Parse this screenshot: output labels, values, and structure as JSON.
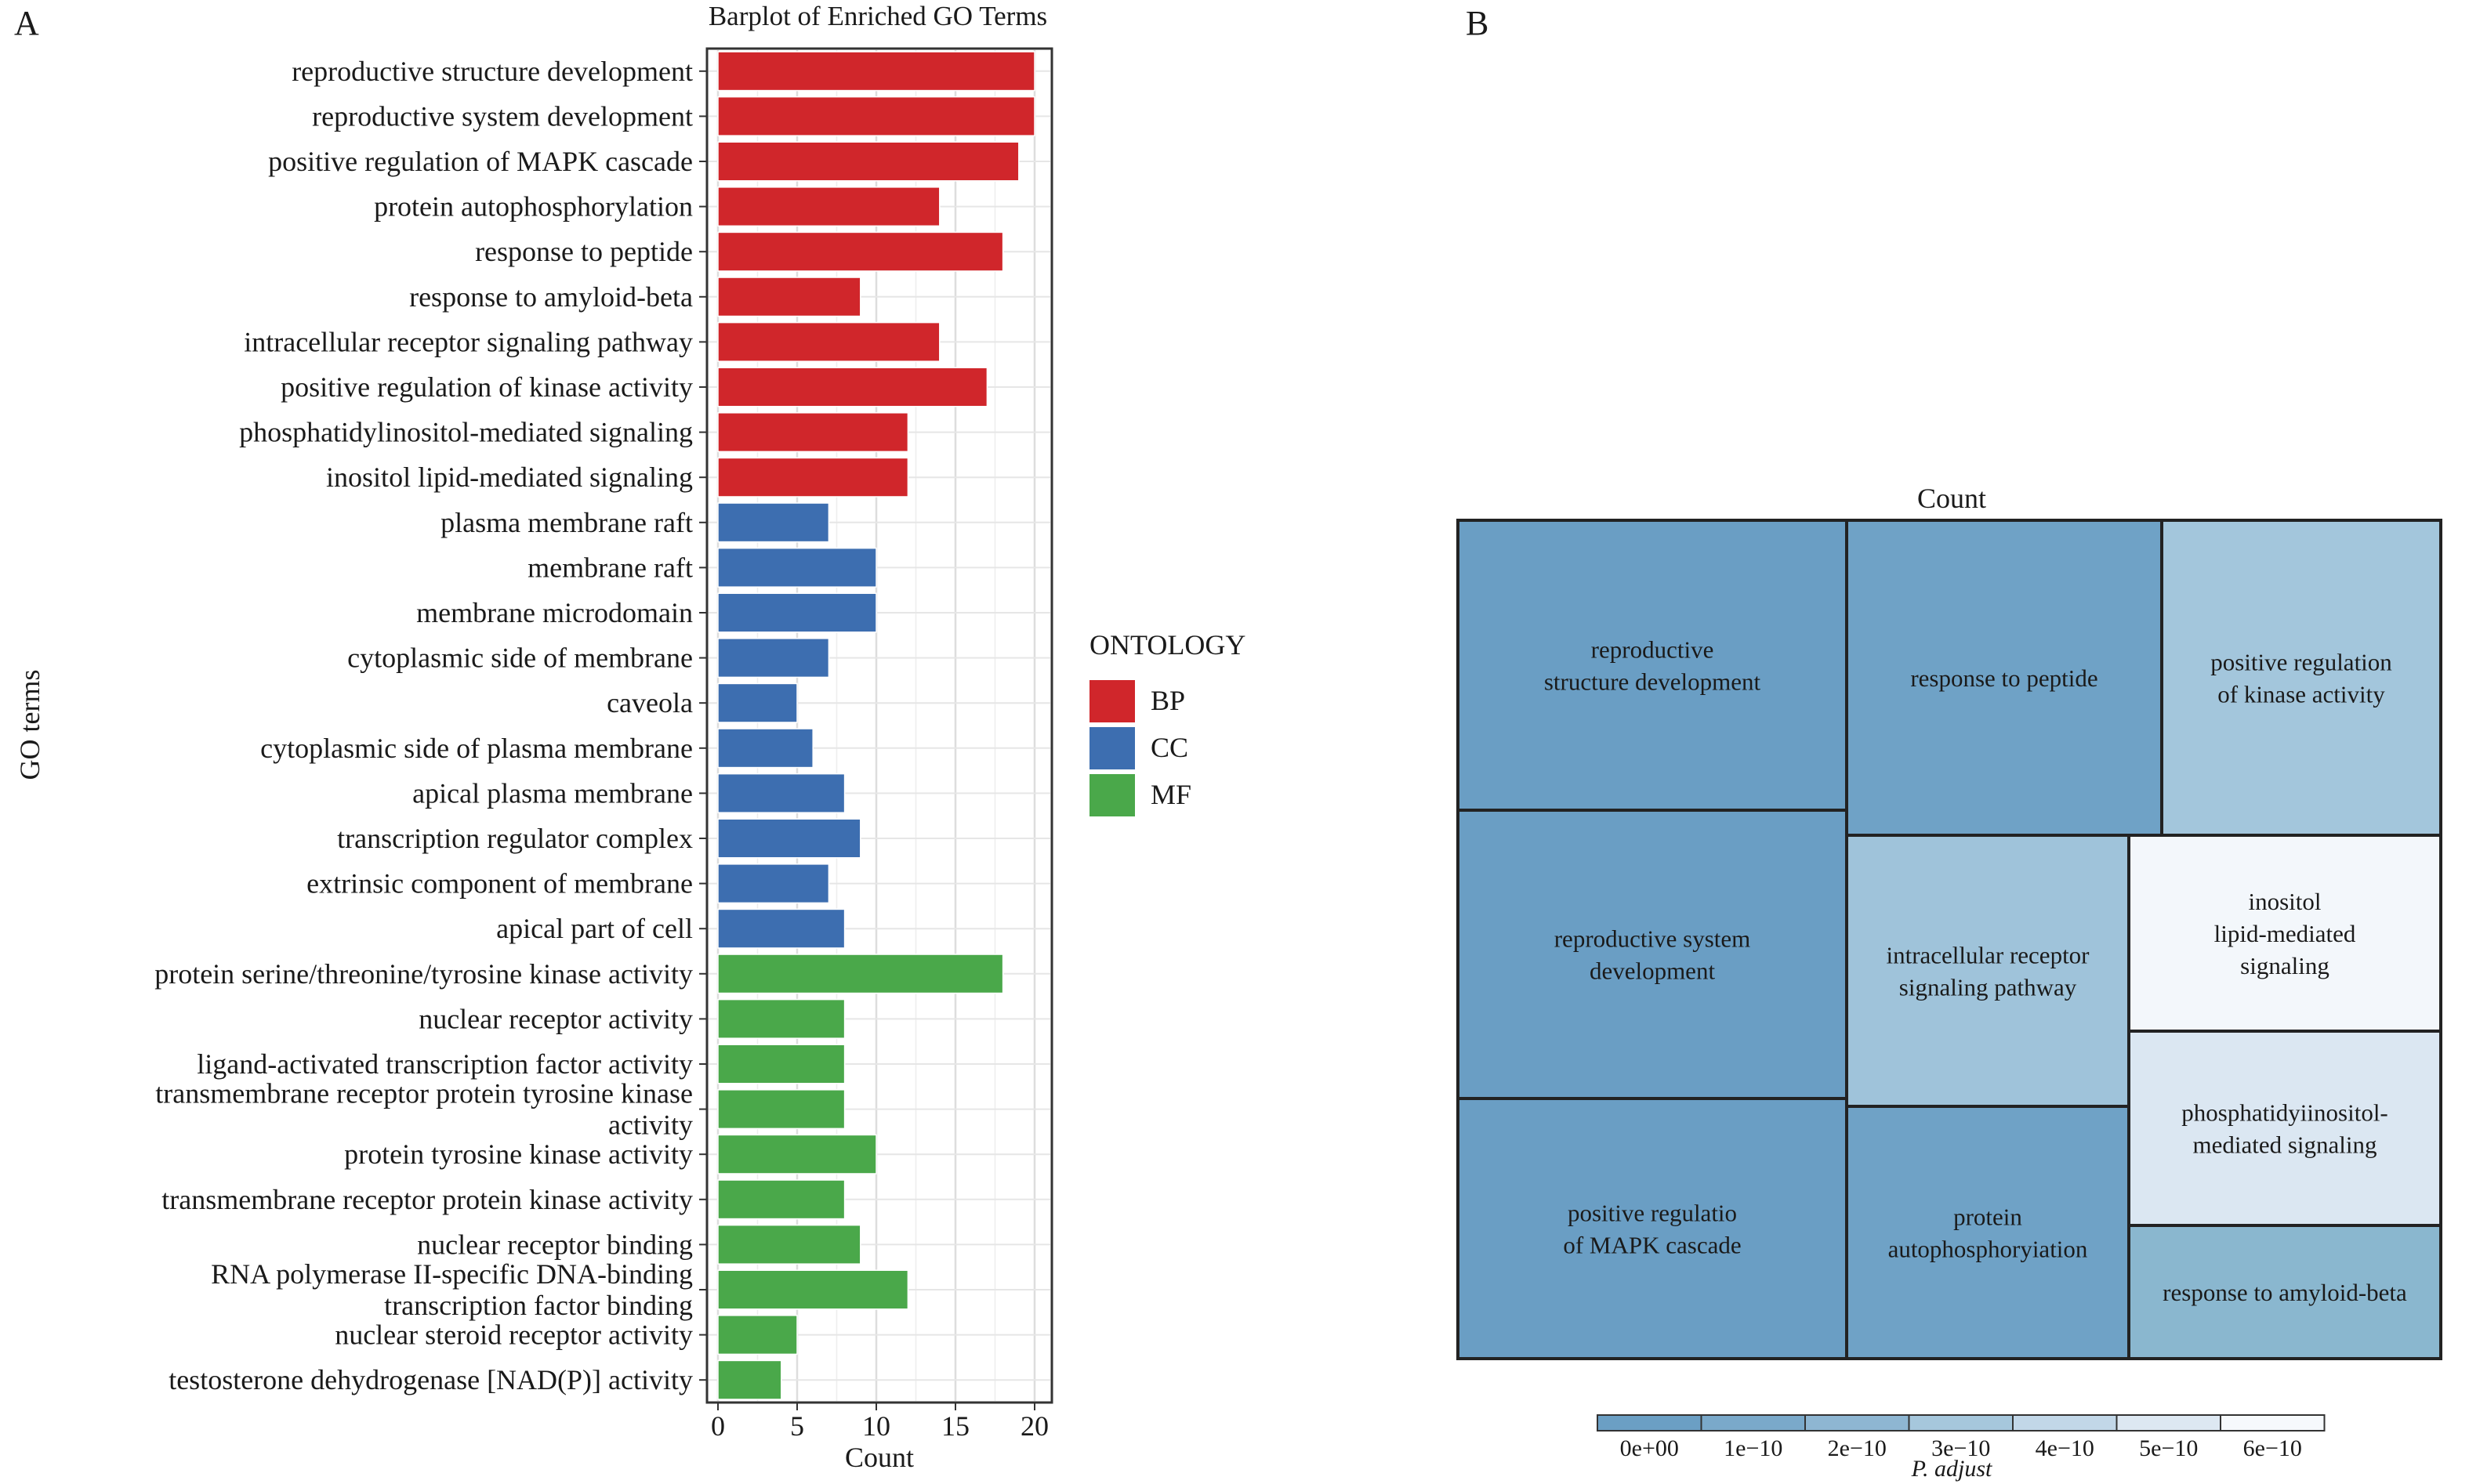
{
  "panels": {
    "A": {
      "label": "A"
    },
    "B": {
      "label": "B"
    }
  },
  "chart_data": [
    {
      "type": "bar",
      "orientation": "horizontal",
      "title": "Barplot of Enriched GO Terms",
      "xlabel": "Count",
      "ylabel": "GO terms",
      "xlim": [
        0,
        21
      ],
      "xticks": [
        0,
        5,
        10,
        15,
        20
      ],
      "grid": true,
      "legend": {
        "title": "ONTOLOGY",
        "placement": "right",
        "entries": [
          {
            "name": "BP",
            "color": "#d0262b"
          },
          {
            "name": "CC",
            "color": "#3d6eb0"
          },
          {
            "name": "MF",
            "color": "#4aa84a"
          }
        ]
      },
      "categories": [
        {
          "lines": [
            "reproductive structure development"
          ],
          "value": 20,
          "group": "BP"
        },
        {
          "lines": [
            "reproductive system development"
          ],
          "value": 20,
          "group": "BP"
        },
        {
          "lines": [
            "positive regulation of MAPK cascade"
          ],
          "value": 19,
          "group": "BP"
        },
        {
          "lines": [
            "protein autophosphorylation"
          ],
          "value": 14,
          "group": "BP"
        },
        {
          "lines": [
            "response to peptide"
          ],
          "value": 18,
          "group": "BP"
        },
        {
          "lines": [
            "response to amyloid-beta"
          ],
          "value": 9,
          "group": "BP"
        },
        {
          "lines": [
            "intracellular receptor signaling pathway"
          ],
          "value": 14,
          "group": "BP"
        },
        {
          "lines": [
            "positive regulation of kinase activity"
          ],
          "value": 17,
          "group": "BP"
        },
        {
          "lines": [
            "phosphatidylinositol-mediated signaling"
          ],
          "value": 12,
          "group": "BP"
        },
        {
          "lines": [
            "inositol lipid-mediated signaling"
          ],
          "value": 12,
          "group": "BP"
        },
        {
          "lines": [
            "plasma membrane raft"
          ],
          "value": 7,
          "group": "CC"
        },
        {
          "lines": [
            "membrane raft"
          ],
          "value": 10,
          "group": "CC"
        },
        {
          "lines": [
            "membrane microdomain"
          ],
          "value": 10,
          "group": "CC"
        },
        {
          "lines": [
            "cytoplasmic side of membrane"
          ],
          "value": 7,
          "group": "CC"
        },
        {
          "lines": [
            "caveola"
          ],
          "value": 5,
          "group": "CC"
        },
        {
          "lines": [
            "cytoplasmic side of plasma membrane"
          ],
          "value": 6,
          "group": "CC"
        },
        {
          "lines": [
            "apical plasma membrane"
          ],
          "value": 8,
          "group": "CC"
        },
        {
          "lines": [
            "transcription regulator complex"
          ],
          "value": 9,
          "group": "CC"
        },
        {
          "lines": [
            "extrinsic component of membrane"
          ],
          "value": 7,
          "group": "CC"
        },
        {
          "lines": [
            "apical part of cell"
          ],
          "value": 8,
          "group": "CC"
        },
        {
          "lines": [
            "protein serine/threonine/tyrosine kinase activity"
          ],
          "value": 18,
          "group": "MF"
        },
        {
          "lines": [
            "nuclear receptor activity"
          ],
          "value": 8,
          "group": "MF"
        },
        {
          "lines": [
            "ligand-activated transcription factor activity"
          ],
          "value": 8,
          "group": "MF"
        },
        {
          "lines": [
            "transmembrane receptor protein tyrosine kinase",
            "activity"
          ],
          "value": 8,
          "group": "MF"
        },
        {
          "lines": [
            "protein tyrosine kinase activity"
          ],
          "value": 10,
          "group": "MF"
        },
        {
          "lines": [
            "transmembrane receptor protein kinase activity"
          ],
          "value": 8,
          "group": "MF"
        },
        {
          "lines": [
            "nuclear receptor binding"
          ],
          "value": 9,
          "group": "MF"
        },
        {
          "lines": [
            "RNA polymerase II-specific DNA-binding",
            "transcription factor binding"
          ],
          "value": 12,
          "group": "MF"
        },
        {
          "lines": [
            "nuclear steroid receptor activity"
          ],
          "value": 5,
          "group": "MF"
        },
        {
          "lines": [
            "testosterone dehydrogenase [NAD(P)] activity"
          ],
          "value": 4,
          "group": "MF"
        }
      ]
    },
    {
      "type": "treemap",
      "title": "Count",
      "legend": {
        "title": "P. adjust",
        "placement": "bottom",
        "labels": [
          "0e+00",
          "1e−10",
          "2e−10",
          "3e−10",
          "4e−10",
          "5e−10",
          "6e−10"
        ],
        "colors": [
          "#6b9fc4",
          "#7aa9ca",
          "#8eb6d2",
          "#a6c7dc",
          "#c2d7e8",
          "#dde8f2",
          "#f6f9fc"
        ]
      },
      "tiles": [
        {
          "lines": [
            "reproductive",
            "structure development"
          ],
          "count": 20,
          "p_adjust": 0.0,
          "color": "#6a9ec4"
        },
        {
          "lines": [
            "reproductive system",
            "development"
          ],
          "count": 20,
          "p_adjust": 0.0,
          "color": "#6a9ec4"
        },
        {
          "lines": [
            "positive regulatio",
            "of MAPK cascade"
          ],
          "count": 19,
          "p_adjust": 0.0,
          "color": "#6a9ec4"
        },
        {
          "lines": [
            "response to peptide"
          ],
          "count": 18,
          "p_adjust": 1e-11,
          "color": "#6fa2c6"
        },
        {
          "lines": [
            "positive regulation",
            "of kinase activity"
          ],
          "count": 17,
          "p_adjust": 2.4e-10,
          "color": "#a3c6dc"
        },
        {
          "lines": [
            "intracellular receptor",
            "signaling pathway"
          ],
          "count": 14,
          "p_adjust": 2.8e-10,
          "color": "#9fc3da"
        },
        {
          "lines": [
            "protein",
            "autophosphoryiation"
          ],
          "count": 14,
          "p_adjust": 1e-11,
          "color": "#6fa2c6"
        },
        {
          "lines": [
            "inositol",
            "lipid-mediated",
            "signaling"
          ],
          "count": 12,
          "p_adjust": 6e-10,
          "color": "#f3f7fb"
        },
        {
          "lines": [
            "phosphatidyiinositol-",
            "mediated signaling"
          ],
          "count": 12,
          "p_adjust": 5e-10,
          "color": "#dbe7f2"
        },
        {
          "lines": [
            "response to amyloid-beta"
          ],
          "count": 9,
          "p_adjust": 1.5e-10,
          "color": "#8ab7cf"
        }
      ]
    }
  ]
}
